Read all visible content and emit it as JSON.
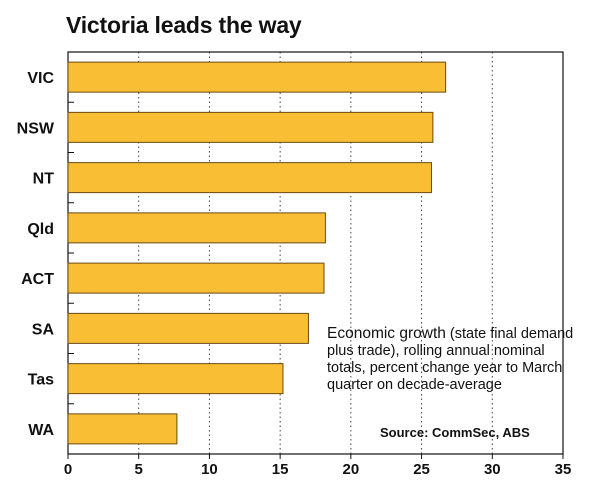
{
  "chart_data": {
    "type": "bar",
    "orientation": "horizontal",
    "title": "Victoria leads the way",
    "categories": [
      "VIC",
      "NSW",
      "NT",
      "Qld",
      "ACT",
      "SA",
      "Tas",
      "WA"
    ],
    "values": [
      26.7,
      25.8,
      25.7,
      18.2,
      18.1,
      17.0,
      15.2,
      7.7
    ],
    "xlim": [
      0,
      35
    ],
    "xticks": [
      0,
      5,
      10,
      15,
      20,
      25,
      30,
      35
    ],
    "grid": "vertical dotted",
    "bar_color": "#F9BE33",
    "bar_edge_color": "#6B4A12",
    "annotation": {
      "lead": "Economic growth",
      "detail": " (state final demand plus trade), rolling annual nominal totals, percent change year to March quarter on decade-average"
    },
    "source": "Source: CommSec, ABS"
  }
}
